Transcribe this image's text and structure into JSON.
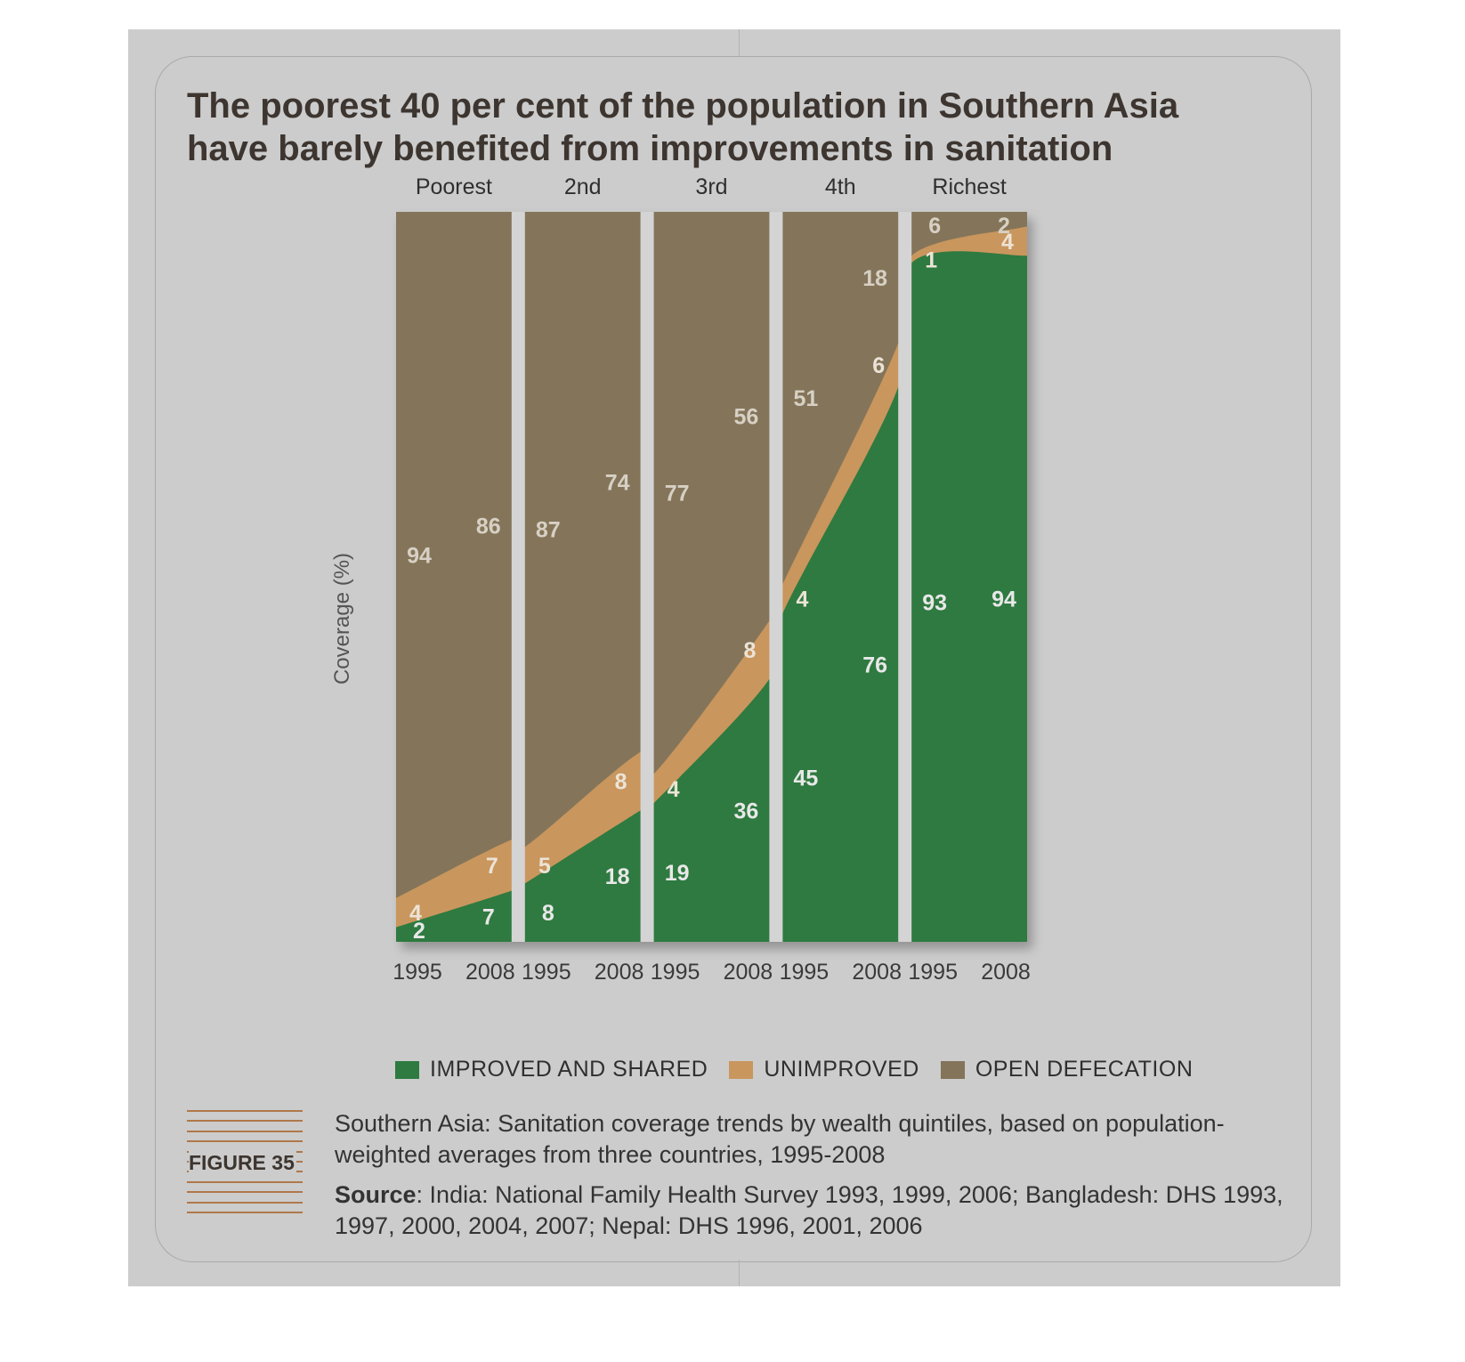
{
  "title": "The poorest 40 per cent of the population in Southern Asia have barely benefited from improvements in sanitation",
  "figure_label": "FIGURE 35",
  "caption": "Southern Asia: Sanitation coverage trends by wealth quintiles, based on population-weighted averages from three countries, 1995-2008",
  "source_label": "Source",
  "source_text": ": India: National Family Health Survey 1993, 1999, 2006; Bangladesh: DHS 1993, 1997, 2000, 2004, 2007; Nepal: DHS 1996, 2001, 2006",
  "colors": {
    "improved": "#2e7a40",
    "unimproved": "#c9965d",
    "open_defecation": "#84745a",
    "separator": "#d4d4d4"
  },
  "chart_data": {
    "type": "area",
    "ylabel": "Coverage (%)",
    "ylim": [
      0,
      100
    ],
    "stacked": true,
    "legend_position": "bottom",
    "series_names": [
      "IMPROVED AND SHARED",
      "UNIMPROVED",
      "OPEN DEFECATION"
    ],
    "groups": [
      {
        "name": "Poorest",
        "years": [
          "1995",
          "2008"
        ],
        "improved": [
          2,
          7
        ],
        "unimproved": [
          4,
          7
        ],
        "open_defecation": [
          94,
          86
        ]
      },
      {
        "name": "2nd",
        "years": [
          "1995",
          "2008"
        ],
        "improved": [
          8,
          18
        ],
        "unimproved": [
          5,
          8
        ],
        "open_defecation": [
          87,
          74
        ]
      },
      {
        "name": "3rd",
        "years": [
          "1995",
          "2008"
        ],
        "improved": [
          19,
          36
        ],
        "unimproved": [
          4,
          8
        ],
        "open_defecation": [
          77,
          56
        ]
      },
      {
        "name": "4th",
        "years": [
          "1995",
          "2008"
        ],
        "improved": [
          45,
          76
        ],
        "unimproved": [
          4,
          6
        ],
        "open_defecation": [
          51,
          18
        ]
      },
      {
        "name": "Richest",
        "years": [
          "1995",
          "2008"
        ],
        "improved": [
          93,
          94
        ],
        "unimproved": [
          1,
          4
        ],
        "open_defecation": [
          6,
          2
        ]
      }
    ]
  }
}
